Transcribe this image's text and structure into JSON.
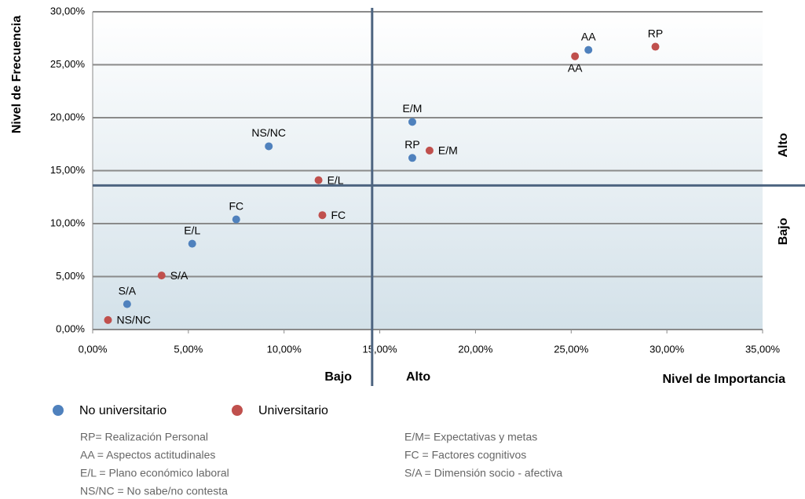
{
  "chart_data": {
    "type": "scatter",
    "x_label": "Nivel de Importancia",
    "y_label": "Nivel de Frecuencia",
    "xlim": [
      0,
      35
    ],
    "ylim": [
      0,
      30
    ],
    "xticks": [
      {
        "value": 0,
        "label": "0,00%"
      },
      {
        "value": 5,
        "label": "5,00%"
      },
      {
        "value": 10,
        "label": "10,00%"
      },
      {
        "value": 15,
        "label": "15,00%"
      },
      {
        "value": 20,
        "label": "20,00%"
      },
      {
        "value": 25,
        "label": "25,00%"
      },
      {
        "value": 30,
        "label": "30,00%"
      },
      {
        "value": 35,
        "label": "35,00%"
      }
    ],
    "yticks": [
      {
        "value": 0,
        "label": "0,00%"
      },
      {
        "value": 5,
        "label": "5,00%"
      },
      {
        "value": 10,
        "label": "10,00%"
      },
      {
        "value": 15,
        "label": "15,00%"
      },
      {
        "value": 20,
        "label": "20,00%"
      },
      {
        "value": 25,
        "label": "25,00%"
      },
      {
        "value": 30,
        "label": "30,00%"
      }
    ],
    "grid": true,
    "dividers": {
      "x": 14.6,
      "y": 13.6
    },
    "quadrant_labels": {
      "x_low": "Bajo",
      "x_high": "Alto",
      "y_high": "Alto",
      "y_low": "Bajo"
    },
    "series": [
      {
        "name": "No universitario",
        "color": "#4f81bd",
        "labels": [
          "AA",
          "E/M",
          "RP",
          "NS/NC",
          "FC",
          "E/L",
          "S/A"
        ],
        "x": [
          25.9,
          16.7,
          16.7,
          9.2,
          7.5,
          5.2,
          1.8
        ],
        "values": [
          26.4,
          19.6,
          16.2,
          17.3,
          10.4,
          8.1,
          2.4
        ]
      },
      {
        "name": "Universitario",
        "color": "#c0504d",
        "labels": [
          "RP",
          "AA",
          "E/M",
          "E/L",
          "FC",
          "S/A",
          "NS/NC"
        ],
        "x": [
          29.4,
          25.2,
          17.6,
          11.8,
          12.0,
          3.6,
          0.8
        ],
        "values": [
          26.7,
          25.8,
          16.9,
          14.1,
          10.8,
          5.1,
          0.9
        ]
      }
    ],
    "notes": [
      "RP= Realización Personal",
      "AA = Aspectos actitudinales",
      "E/L = Plano económico laboral",
      "NS/NC = No sabe/no contesta",
      "E/M= Expectativas y metas",
      "FC = Factores cognitivos",
      "S/A = Dimensión socio - afectiva"
    ]
  }
}
